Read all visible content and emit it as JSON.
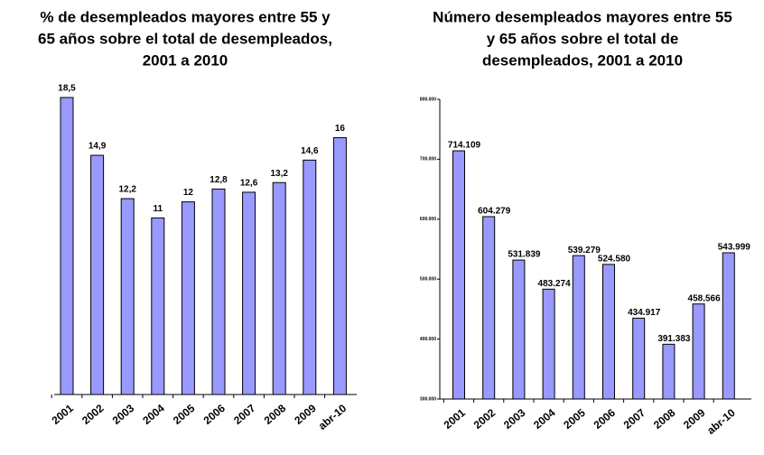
{
  "chart_data": [
    {
      "type": "bar",
      "title": [
        "% de desempleados mayores entre 55 y",
        "65 años sobre el total de desempleados,",
        "2001 a 2010"
      ],
      "categories": [
        "2001",
        "2002",
        "2003",
        "2004",
        "2005",
        "2006",
        "2007",
        "2008",
        "2009",
        "abr-10"
      ],
      "values": [
        18.5,
        14.9,
        12.2,
        11,
        12,
        12.8,
        12.6,
        13.2,
        14.6,
        16
      ],
      "value_labels": [
        "18,5",
        "14,9",
        "12,2",
        "11",
        "12",
        "12,8",
        "12,6",
        "13,2",
        "14,6",
        "16"
      ],
      "color": "#9999ff"
    },
    {
      "type": "bar",
      "title": [
        "Número desempleados mayores entre 55",
        "y 65 años sobre el total de",
        "desempleados, 2001 a 2010"
      ],
      "categories": [
        "2001",
        "2002",
        "2003",
        "2004",
        "2005",
        "2006",
        "2007",
        "2008",
        "2009",
        "abr-10"
      ],
      "values": [
        714109,
        604279,
        531839,
        483274,
        539279,
        524580,
        434917,
        391383,
        458566,
        543999
      ],
      "value_labels": [
        "714.109",
        "604.279",
        "531.839",
        "483.274",
        "539.279",
        "524.580",
        "434.917",
        "391.383",
        "458.566",
        "543.999"
      ],
      "color": "#9999ff",
      "ylim": [
        300000,
        800000
      ],
      "yticks": [
        {
          "value": 300000,
          "label": "300.000"
        },
        {
          "value": 400000,
          "label": "400.000"
        },
        {
          "value": 500000,
          "label": "500.000"
        },
        {
          "value": 600000,
          "label": "600.000"
        },
        {
          "value": 700000,
          "label": "700.000"
        },
        {
          "value": 800000,
          "label": "800.000"
        }
      ]
    }
  ]
}
